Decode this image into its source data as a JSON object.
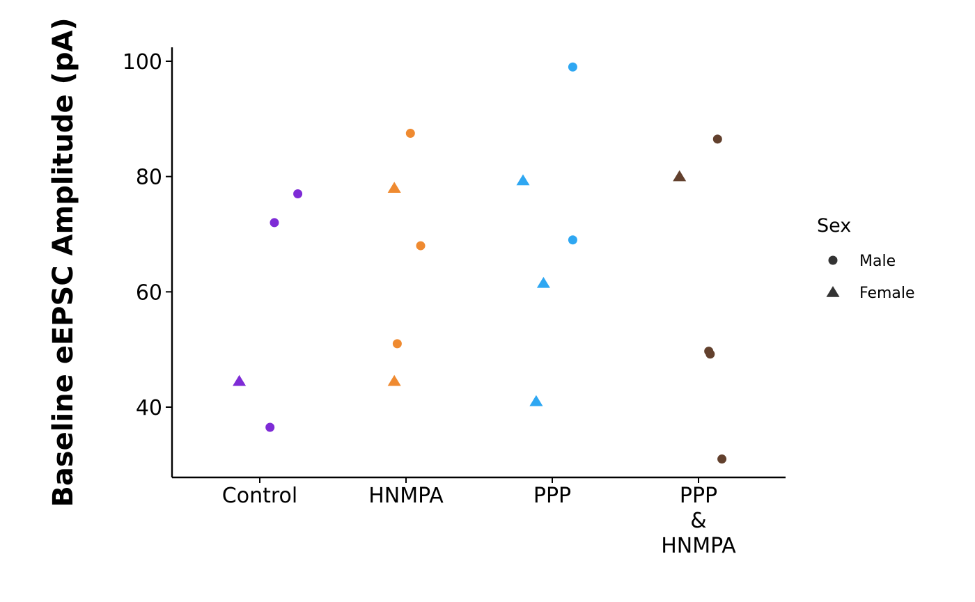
{
  "chart_data": {
    "type": "scatter",
    "title": "",
    "xlabel": "",
    "ylabel": "Baseline eEPSC Amplitude (pA)",
    "categories": [
      "Control",
      "HNMPA",
      "PPP",
      "PPP\n&\nHNMPA"
    ],
    "ylim": [
      28,
      102
    ],
    "yticks": [
      40,
      60,
      80,
      100
    ],
    "grid": false,
    "legend": {
      "title": "Sex",
      "position": "right",
      "entries": [
        {
          "label": "Male",
          "shape": "circle"
        },
        {
          "label": "Female",
          "shape": "triangle"
        }
      ]
    },
    "colors": {
      "Control": "#7e2bd6",
      "HNMPA": "#ef8a30",
      "PPP": "#2ea7f2",
      "PPP\n&\nHNMPA": "#62402d"
    },
    "points": [
      {
        "group": "Control",
        "sex": "Female",
        "x": -0.14,
        "y": 44.5
      },
      {
        "group": "Control",
        "sex": "Male",
        "x": 0.07,
        "y": 36.5
      },
      {
        "group": "Control",
        "sex": "Male",
        "x": 0.1,
        "y": 72
      },
      {
        "group": "Control",
        "sex": "Male",
        "x": 0.26,
        "y": 77
      },
      {
        "group": "HNMPA",
        "sex": "Female",
        "x": 0.92,
        "y": 78
      },
      {
        "group": "HNMPA",
        "sex": "Female",
        "x": 0.92,
        "y": 44.5
      },
      {
        "group": "HNMPA",
        "sex": "Male",
        "x": 1.03,
        "y": 87.5
      },
      {
        "group": "HNMPA",
        "sex": "Male",
        "x": 1.1,
        "y": 68
      },
      {
        "group": "HNMPA",
        "sex": "Male",
        "x": 0.94,
        "y": 51
      },
      {
        "group": "PPP",
        "sex": "Female",
        "x": 1.8,
        "y": 79.3
      },
      {
        "group": "PPP",
        "sex": "Female",
        "x": 1.94,
        "y": 61.5
      },
      {
        "group": "PPP",
        "sex": "Female",
        "x": 1.89,
        "y": 41
      },
      {
        "group": "PPP",
        "sex": "Male",
        "x": 2.14,
        "y": 99
      },
      {
        "group": "PPP",
        "sex": "Male",
        "x": 2.14,
        "y": 69
      },
      {
        "group": "PPP\n&\nHNMPA",
        "sex": "Female",
        "x": 2.87,
        "y": 80
      },
      {
        "group": "PPP\n&\nHNMPA",
        "sex": "Male",
        "x": 3.13,
        "y": 86.5
      },
      {
        "group": "PPP\n&\nHNMPA",
        "sex": "Male",
        "x": 3.07,
        "y": 49.7
      },
      {
        "group": "PPP\n&\nHNMPA",
        "sex": "Male",
        "x": 3.08,
        "y": 49.2
      },
      {
        "group": "PPP\n&\nHNMPA",
        "sex": "Male",
        "x": 3.16,
        "y": 31
      }
    ]
  }
}
